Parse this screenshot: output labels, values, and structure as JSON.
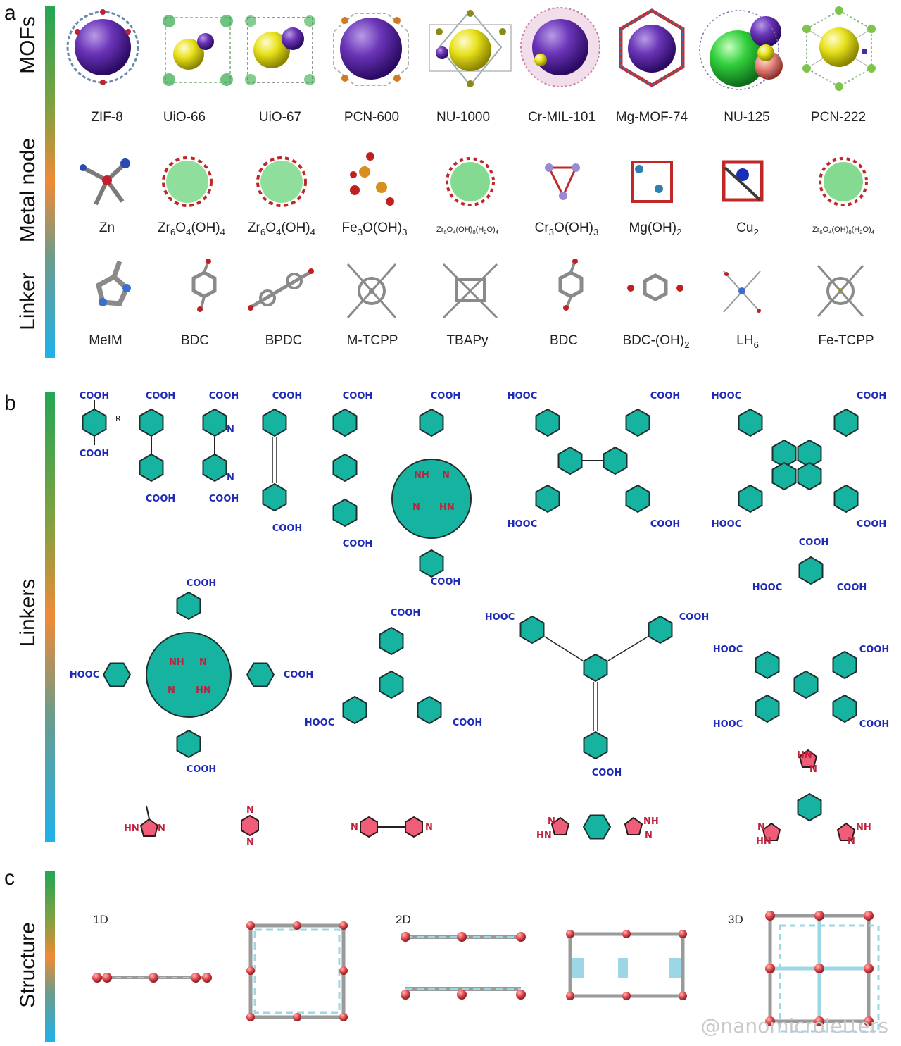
{
  "panel_a": {
    "letter": "a",
    "rows": [
      {
        "title": "MOFs"
      },
      {
        "title": "Metal node"
      },
      {
        "title": "Linker"
      }
    ],
    "mofs": [
      "ZIF-8",
      "UiO-66",
      "UiO-67",
      "PCN-600",
      "NU-1000",
      "Cr-MIL-101",
      "Mg-MOF-74",
      "NU-125",
      "PCN-222"
    ],
    "linkers": [
      "MeIM",
      "BDC",
      "BPDC",
      "M-TCPP",
      "TBAPy",
      "BDC",
      "",
      "",
      "Fe-TCPP"
    ]
  },
  "panel_b": {
    "letter": "b",
    "title": "Linkers",
    "cooh": "COOH",
    "hooc": "HOOC",
    "r": "R",
    "n": "N",
    "nh": "NH",
    "hn": "HN"
  },
  "panel_c": {
    "letter": "c",
    "title": "Structure",
    "d1": "1D",
    "d2": "2D",
    "d3": "3D"
  },
  "watermark": "@nanomicroletters",
  "colors": {
    "ring": "#14b8a6",
    "cooh": "#1f2ab8",
    "nitrogen_ring": "#ef5d78",
    "node": "#e0474c",
    "bond": "#9cd7e6"
  }
}
